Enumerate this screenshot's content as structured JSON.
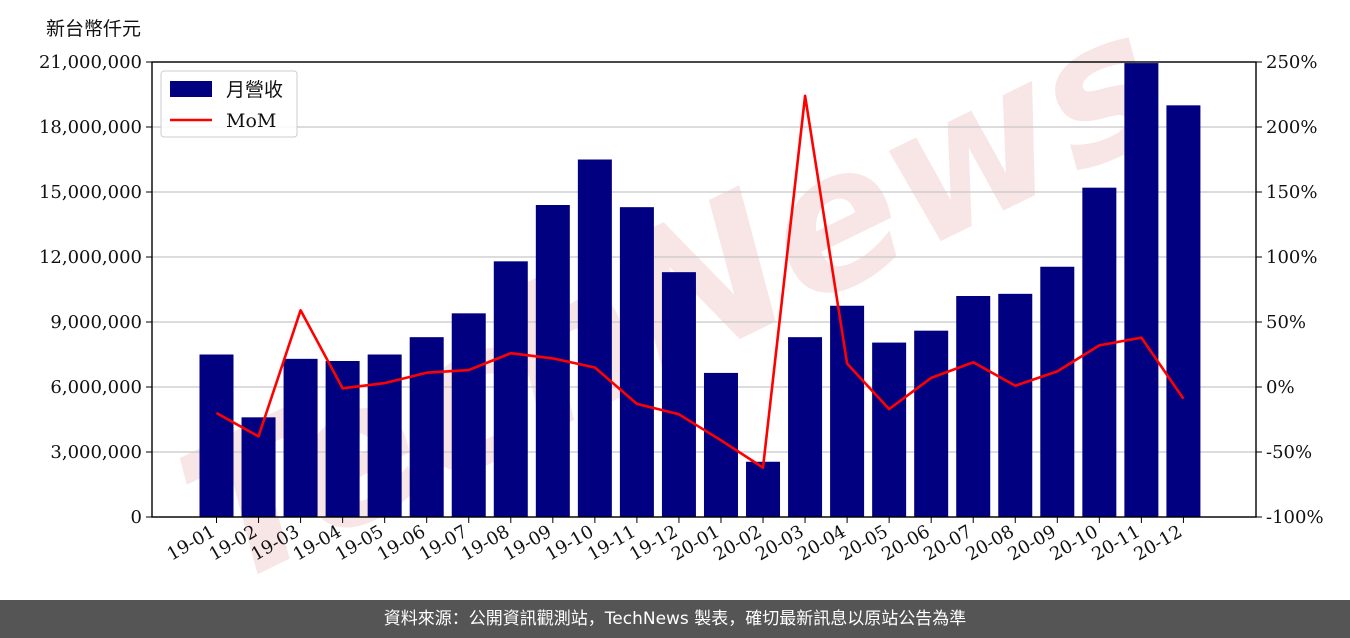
{
  "unit_label": "新台幣仟元",
  "footer_text": "資料來源：公開資訊觀測站，TechNews 製表，確切最新訊息以原站公告為準",
  "watermark": "TechNews",
  "colors": {
    "bar": "#000080",
    "line": "#ff0000",
    "watermark": "#f6dede",
    "footer_bg": "#555555"
  },
  "chart_data": {
    "type": "bar",
    "categories": [
      "19-01",
      "19-02",
      "19-03",
      "19-04",
      "19-05",
      "19-06",
      "19-07",
      "19-08",
      "19-09",
      "19-10",
      "19-11",
      "19-12",
      "20-01",
      "20-02",
      "20-03",
      "20-04",
      "20-05",
      "20-06",
      "20-07",
      "20-08",
      "20-09",
      "20-10",
      "20-11",
      "20-12"
    ],
    "series": [
      {
        "name": "月營收",
        "type": "bar",
        "axis": "left",
        "values": [
          7500000,
          4600000,
          7300000,
          7200000,
          7500000,
          8300000,
          9400000,
          11800000,
          14400000,
          16500000,
          14300000,
          11300000,
          6650000,
          2550000,
          8300000,
          9750000,
          8050000,
          8600000,
          10200000,
          10300000,
          11550000,
          15200000,
          20950000,
          19000000
        ]
      },
      {
        "name": "MoM",
        "type": "line",
        "axis": "right",
        "values": [
          -20,
          -38,
          59,
          -1,
          3,
          11,
          13,
          26,
          22,
          15,
          -13,
          -21,
          -41,
          -62,
          224,
          18,
          -17,
          7,
          19,
          1,
          12,
          32,
          38,
          -9
        ]
      }
    ],
    "y_left": {
      "ylim": [
        0,
        21000000
      ],
      "ticks": [
        "0",
        "3,000,000",
        "6,000,000",
        "9,000,000",
        "12,000,000",
        "15,000,000",
        "18,000,000",
        "21,000,000"
      ]
    },
    "y_right": {
      "ylim": [
        -100,
        250
      ],
      "ticks": [
        "-100%",
        "-50%",
        "0%",
        "50%",
        "100%",
        "150%",
        "200%",
        "250%"
      ]
    },
    "grid": "horizontal",
    "legend": "top-left"
  }
}
